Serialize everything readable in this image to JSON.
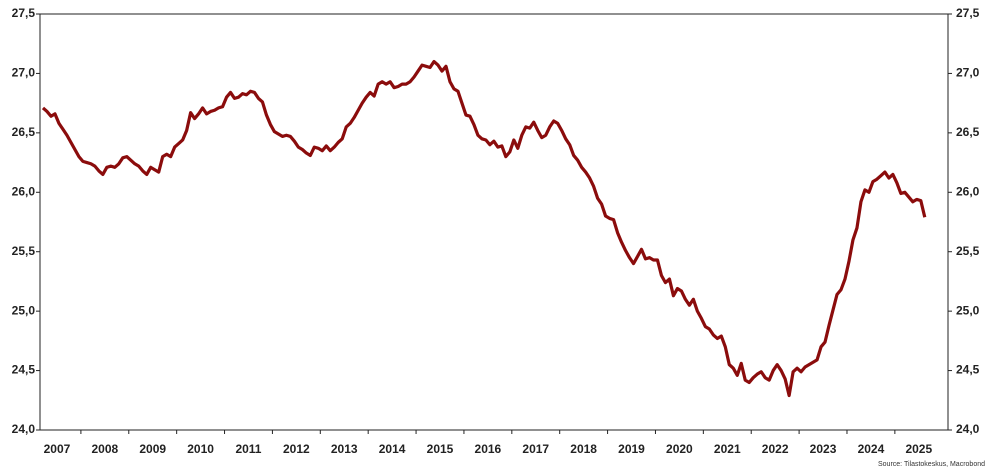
{
  "chart_data": {
    "type": "line",
    "color": "#8b0c0c",
    "grid": true,
    "source": "Source: Tilastokeskus, Macrobond",
    "ylim": [
      24.0,
      27.5
    ],
    "yticks": [
      {
        "value": 24.0,
        "label": "24,0"
      },
      {
        "value": 24.5,
        "label": "24,5"
      },
      {
        "value": 25.0,
        "label": "25,0"
      },
      {
        "value": 25.5,
        "label": "25,5"
      },
      {
        "value": 26.0,
        "label": "26,0"
      },
      {
        "value": 26.5,
        "label": "26,5"
      },
      {
        "value": 27.0,
        "label": "27,0"
      },
      {
        "value": 27.5,
        "label": "27,5"
      }
    ],
    "categories": [
      null,
      null,
      null,
      null,
      "2007",
      null,
      null,
      null,
      null,
      null,
      null,
      null,
      null,
      null,
      null,
      null,
      "2008",
      null,
      null,
      null,
      null,
      null,
      null,
      null,
      null,
      null,
      null,
      null,
      "2009",
      null,
      null,
      null,
      null,
      null,
      null,
      null,
      null,
      null,
      null,
      null,
      "2010",
      null,
      null,
      null,
      null,
      null,
      null,
      null,
      null,
      null,
      null,
      null,
      "2011",
      null,
      null,
      null,
      null,
      null,
      null,
      null,
      null,
      null,
      null,
      null,
      "2012",
      null,
      null,
      null,
      null,
      null,
      null,
      null,
      null,
      null,
      null,
      null,
      "2013",
      null,
      null,
      null,
      null,
      null,
      null,
      null,
      null,
      null,
      null,
      null,
      "2014",
      null,
      null,
      null,
      null,
      null,
      null,
      null,
      null,
      null,
      null,
      null,
      "2015",
      null,
      null,
      null,
      null,
      null,
      null,
      null,
      null,
      null,
      null,
      null,
      "2016",
      null,
      null,
      null,
      null,
      null,
      null,
      null,
      null,
      null,
      null,
      null,
      "2017",
      null,
      null,
      null,
      null,
      null,
      null,
      null,
      null,
      null,
      null,
      null,
      "2018",
      null,
      null,
      null,
      null,
      null,
      null,
      null,
      null,
      null,
      null,
      null,
      "2019",
      null,
      null,
      null,
      null,
      null,
      null,
      null,
      null,
      null,
      null,
      null,
      "2020",
      null,
      null,
      null,
      null,
      null,
      null,
      null,
      null,
      null,
      null,
      null,
      "2021",
      null,
      null,
      null,
      null,
      null,
      null,
      null,
      null,
      null,
      null,
      null,
      "2022",
      null,
      null,
      null,
      null,
      null,
      null,
      null,
      null,
      null,
      null,
      null,
      "2023",
      null,
      null,
      null,
      null,
      null,
      null,
      null,
      null,
      null,
      null,
      null,
      "2024",
      null,
      null,
      null,
      null,
      null,
      null,
      null,
      null,
      null,
      null,
      null,
      "2025",
      null
    ],
    "values": [
      26.71,
      26.68,
      26.64,
      26.66,
      26.58,
      26.53,
      26.48,
      26.42,
      26.36,
      26.3,
      26.26,
      26.25,
      26.24,
      26.22,
      26.18,
      26.15,
      26.21,
      26.22,
      26.21,
      26.24,
      26.29,
      26.3,
      26.27,
      26.24,
      26.22,
      26.18,
      26.15,
      26.21,
      26.19,
      26.17,
      26.3,
      26.32,
      26.3,
      26.38,
      26.41,
      26.44,
      26.52,
      26.67,
      26.62,
      26.66,
      26.71,
      26.66,
      26.68,
      26.69,
      26.71,
      26.72,
      26.8,
      26.84,
      26.79,
      26.8,
      26.83,
      26.82,
      26.85,
      26.84,
      26.79,
      26.76,
      26.65,
      26.57,
      26.51,
      26.49,
      26.47,
      26.48,
      26.47,
      26.43,
      26.38,
      26.36,
      26.33,
      26.31,
      26.38,
      26.37,
      26.35,
      26.39,
      26.35,
      26.38,
      26.42,
      26.45,
      26.55,
      26.58,
      26.63,
      26.69,
      26.75,
      26.8,
      26.84,
      26.81,
      26.91,
      26.93,
      26.91,
      26.93,
      26.88,
      26.89,
      26.91,
      26.91,
      26.93,
      26.97,
      27.02,
      27.07,
      27.06,
      27.05,
      27.1,
      27.07,
      27.02,
      27.06,
      26.93,
      26.87,
      26.85,
      26.75,
      26.65,
      26.64,
      26.57,
      26.48,
      26.45,
      26.44,
      26.4,
      26.43,
      26.38,
      26.39,
      26.3,
      26.34,
      26.44,
      26.37,
      26.48,
      26.55,
      26.54,
      26.59,
      26.52,
      26.46,
      26.48,
      26.55,
      26.6,
      26.58,
      26.52,
      26.45,
      26.4,
      26.31,
      26.27,
      26.21,
      26.17,
      26.12,
      26.05,
      25.95,
      25.9,
      25.8,
      25.78,
      25.77,
      25.66,
      25.58,
      25.51,
      25.45,
      25.4,
      25.46,
      25.52,
      25.44,
      25.45,
      25.43,
      25.43,
      25.3,
      25.24,
      25.27,
      25.13,
      25.19,
      25.17,
      25.1,
      25.05,
      25.1,
      25.0,
      24.94,
      24.87,
      24.85,
      24.8,
      24.77,
      24.79,
      24.7,
      24.55,
      24.52,
      24.46,
      24.56,
      24.42,
      24.4,
      24.44,
      24.47,
      24.49,
      24.44,
      24.42,
      24.5,
      24.55,
      24.5,
      24.43,
      24.29,
      24.49,
      24.52,
      24.49,
      24.53,
      24.55,
      24.57,
      24.59,
      24.7,
      24.74,
      24.88,
      25.01,
      25.14,
      25.18,
      25.27,
      25.42,
      25.6,
      25.7,
      25.92,
      26.02,
      26.0,
      26.09,
      26.11,
      26.14,
      26.17,
      26.12,
      26.15,
      26.08,
      25.99,
      26.0,
      25.96,
      25.92,
      25.94,
      25.93,
      25.79
    ]
  }
}
